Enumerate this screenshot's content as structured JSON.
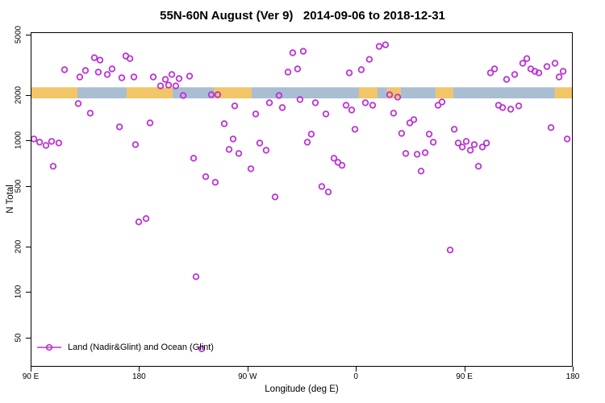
{
  "title": "55N-60N August (Ver 9)   2014-09-06 to 2018-12-31",
  "chart_data": {
    "type": "scatter",
    "title": "55N-60N August (Ver 9)   2014-09-06 to 2018-12-31",
    "xlabel": "Longitude (deg E)",
    "ylabel": "N Total",
    "grid": false,
    "point_color": "#bb33d6",
    "x_axis": {
      "min": 90,
      "max": 540,
      "ticks": [
        {
          "pos": 90,
          "label": "90 E"
        },
        {
          "pos": 180,
          "label": "180"
        },
        {
          "pos": 270,
          "label": "90 W"
        },
        {
          "pos": 360,
          "label": "0"
        },
        {
          "pos": 450,
          "label": "90 E"
        },
        {
          "pos": 540,
          "label": "180"
        }
      ]
    },
    "y_axis": {
      "scale": "log",
      "min": 32,
      "max": 5200,
      "ticks": [
        50,
        100,
        200,
        500,
        1000,
        2000,
        5000
      ]
    },
    "legend": {
      "position": "bottom-left",
      "label": "Land (Nadir&Glint) and Ocean (Glint)"
    },
    "map_band": {
      "value_top": 2250,
      "value_bottom": 1900,
      "land_color": "#f2c566",
      "ocean_color": "#a9bdd3",
      "segments": [
        {
          "from": 90,
          "to": 128.8,
          "type": "land"
        },
        {
          "from": 128.8,
          "to": 169.7,
          "type": "ocean"
        },
        {
          "from": 169.7,
          "to": 207.8,
          "type": "land"
        },
        {
          "from": 207.8,
          "to": 242.0,
          "type": "ocean"
        },
        {
          "from": 242.0,
          "to": 273.5,
          "type": "land"
        },
        {
          "from": 273.5,
          "to": 362.5,
          "type": "ocean"
        },
        {
          "from": 362.5,
          "to": 377.9,
          "type": "land"
        },
        {
          "from": 377.9,
          "to": 385.9,
          "type": "ocean"
        },
        {
          "from": 385.9,
          "to": 397.3,
          "type": "land"
        },
        {
          "from": 397.3,
          "to": 426.1,
          "type": "ocean"
        },
        {
          "from": 426.1,
          "to": 440.8,
          "type": "land"
        },
        {
          "from": 440.8,
          "to": 525.2,
          "type": "ocean"
        },
        {
          "from": 525.2,
          "to": 540.0,
          "type": "land"
        }
      ]
    },
    "points": [
      [
        92.7,
        1025
      ],
      [
        97.4,
        976
      ],
      [
        102.7,
        929
      ],
      [
        107.4,
        988
      ],
      [
        108.7,
        676
      ],
      [
        113.4,
        964
      ],
      [
        118.1,
        2938
      ],
      [
        129.5,
        1757
      ],
      [
        130.8,
        2632
      ],
      [
        135.5,
        2903
      ],
      [
        139.5,
        1517
      ],
      [
        142.9,
        3528
      ],
      [
        146.2,
        2833
      ],
      [
        147.6,
        3400
      ],
      [
        153.6,
        2735
      ],
      [
        157.6,
        2975
      ],
      [
        163.7,
        1232
      ],
      [
        165.7,
        2601
      ],
      [
        169.0,
        3623
      ],
      [
        172.4,
        3481
      ],
      [
        175.7,
        2632
      ],
      [
        177.0,
        941
      ],
      [
        179.7,
        290
      ],
      [
        185.8,
        305
      ],
      [
        189.1,
        1309
      ],
      [
        191.8,
        2632
      ],
      [
        197.8,
        2297
      ],
      [
        201.8,
        2536
      ],
      [
        204.5,
        2325
      ],
      [
        207.2,
        2735
      ],
      [
        210.5,
        2297
      ],
      [
        213.2,
        2568
      ],
      [
        216.6,
        1985
      ],
      [
        221.9,
        2665
      ],
      [
        225.3,
        764
      ],
      [
        227.3,
        126
      ],
      [
        232.0,
        42
      ],
      [
        235.3,
        577
      ],
      [
        240.0,
        2010
      ],
      [
        243.3,
        530
      ],
      [
        245.3,
        2010
      ],
      [
        250.7,
        1293
      ],
      [
        254.7,
        874
      ],
      [
        258.1,
        1025
      ],
      [
        259.4,
        1694
      ],
      [
        262.8,
        822
      ],
      [
        272.8,
        651
      ],
      [
        276.8,
        1499
      ],
      [
        280.2,
        963
      ],
      [
        285.5,
        863
      ],
      [
        288.2,
        1778
      ],
      [
        292.9,
        424
      ],
      [
        296.2,
        1985
      ],
      [
        298.9,
        1652
      ],
      [
        303.6,
        2833
      ],
      [
        307.6,
        3802
      ],
      [
        311.6,
        2975
      ],
      [
        313.6,
        1868
      ],
      [
        316.3,
        3895
      ],
      [
        319.7,
        976
      ],
      [
        323.0,
        1103
      ],
      [
        326.4,
        1778
      ],
      [
        331.7,
        497
      ],
      [
        335.1,
        1499
      ],
      [
        337.1,
        457
      ],
      [
        341.8,
        764
      ],
      [
        345.1,
        718
      ],
      [
        348.5,
        685
      ],
      [
        351.8,
        1712
      ],
      [
        354.5,
        2803
      ],
      [
        356.5,
        1592
      ],
      [
        359.2,
        1187
      ],
      [
        364.5,
        2938
      ],
      [
        367.9,
        1778
      ],
      [
        371.2,
        3438
      ],
      [
        373.9,
        1712
      ],
      [
        379.3,
        4191
      ],
      [
        384.6,
        4294
      ],
      [
        388.0,
        2010
      ],
      [
        391.3,
        1517
      ],
      [
        394.7,
        1937
      ],
      [
        398.0,
        1116
      ],
      [
        401.4,
        822
      ],
      [
        404.7,
        1309
      ],
      [
        408.1,
        1375
      ],
      [
        410.8,
        812
      ],
      [
        414.1,
        628
      ],
      [
        417.5,
        832
      ],
      [
        420.8,
        1103
      ],
      [
        424.2,
        976
      ],
      [
        428.2,
        1712
      ],
      [
        431.5,
        1800
      ],
      [
        438.2,
        189
      ],
      [
        441.6,
        1187
      ],
      [
        444.9,
        964
      ],
      [
        448.3,
        907
      ],
      [
        451.6,
        988
      ],
      [
        455.0,
        863
      ],
      [
        458.3,
        941
      ],
      [
        461.7,
        676
      ],
      [
        465.0,
        907
      ],
      [
        468.4,
        963
      ],
      [
        471.7,
        2803
      ],
      [
        475.1,
        2975
      ],
      [
        478.4,
        1712
      ],
      [
        481.8,
        1652
      ],
      [
        485.1,
        2536
      ],
      [
        488.5,
        1612
      ],
      [
        491.8,
        2735
      ],
      [
        495.2,
        1694
      ],
      [
        498.5,
        3244
      ],
      [
        501.9,
        3481
      ],
      [
        505.2,
        2975
      ],
      [
        508.6,
        2868
      ],
      [
        511.9,
        2803
      ],
      [
        518.6,
        3084
      ],
      [
        522.0,
        1218
      ],
      [
        525.3,
        3244
      ],
      [
        528.7,
        2632
      ],
      [
        532.0,
        2868
      ],
      [
        535.4,
        1025
      ]
    ]
  }
}
